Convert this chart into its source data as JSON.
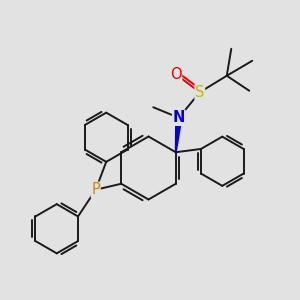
{
  "background_color": "#e2e2e2",
  "atom_colors": {
    "C": "#1a1a1a",
    "N": "#0000dd",
    "O": "#ee0000",
    "S": "#bbbb00",
    "P": "#cc8800"
  },
  "bond_color": "#1a1a1a",
  "bond_width": 1.4,
  "fig_width": 3.0,
  "fig_height": 3.0,
  "dpi": 100,
  "xlim": [
    0,
    10
  ],
  "ylim": [
    0,
    10
  ]
}
